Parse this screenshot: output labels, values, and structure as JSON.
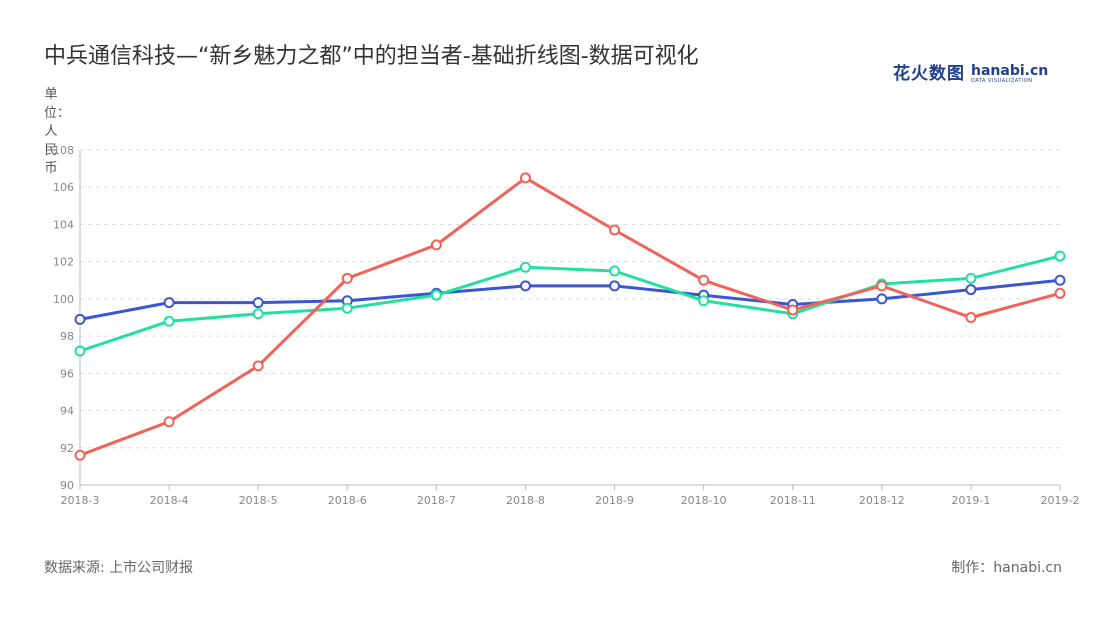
{
  "title": "中兵通信科技—“新乡魅力之都”中的担当者-基础折线图-数据可视化",
  "brand": {
    "cn": "花火数图",
    "en": "hanabi.cn",
    "sub": "DATA VISUALIZATION"
  },
  "source": "数据来源: 上市公司财报",
  "maker": "制作：hanabi.cn",
  "colors": {
    "series1": "#3a56d4",
    "series2": "#21e0a0",
    "series3": "#f0635a",
    "grid": "#dddddd",
    "axis": "#bbbbbb"
  },
  "chart_data": {
    "type": "line",
    "categories": [
      "2018-3",
      "2018-4",
      "2018-5",
      "2018-6",
      "2018-7",
      "2018-8",
      "2018-9",
      "2018-10",
      "2018-11",
      "2018-12",
      "2019-1",
      "2019-2"
    ],
    "ylabel": "单位：人民币",
    "ylim": [
      90,
      108
    ],
    "yticks": [
      90,
      92,
      94,
      96,
      98,
      100,
      102,
      104,
      106,
      108
    ],
    "grid": true,
    "series": [
      {
        "values": [
          98.9,
          99.8,
          99.8,
          99.9,
          100.3,
          100.7,
          100.7,
          100.2,
          99.7,
          100.0,
          100.5,
          101.0
        ],
        "color": "#3a56d4"
      },
      {
        "values": [
          97.2,
          98.8,
          99.2,
          99.5,
          100.2,
          101.7,
          101.5,
          99.9,
          99.2,
          100.8,
          101.1,
          102.3
        ],
        "color": "#21e0a0"
      },
      {
        "values": [
          91.6,
          93.4,
          96.4,
          101.1,
          102.9,
          106.5,
          103.7,
          101.0,
          99.4,
          100.7,
          99.0,
          100.3
        ],
        "color": "#f0635a"
      }
    ]
  }
}
